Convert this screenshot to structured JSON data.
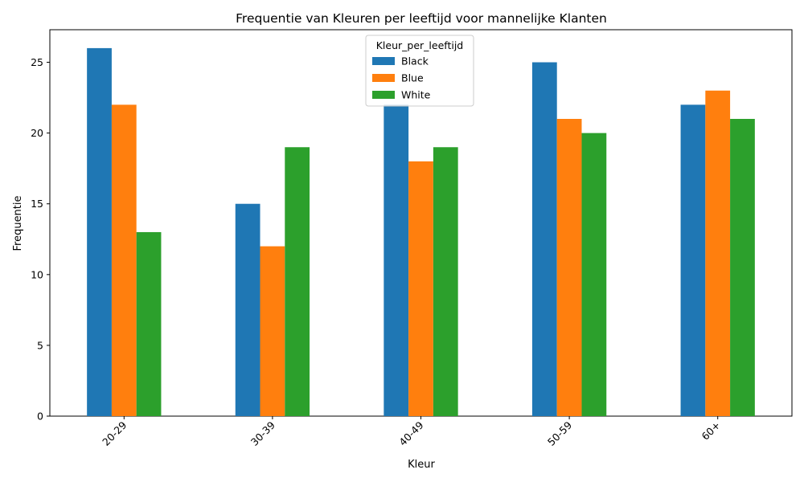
{
  "chart_data": {
    "type": "bar",
    "title": "Frequentie van Kleuren per leeftijd voor mannelijke Klanten",
    "xlabel": "Kleur",
    "ylabel": "Frequentie",
    "categories": [
      "20-29",
      "30-39",
      "40-49",
      "50-59",
      "60+"
    ],
    "series": [
      {
        "name": "Black",
        "color": "#1f77b4",
        "values": [
          26,
          15,
          22,
          25,
          22
        ]
      },
      {
        "name": "Blue",
        "color": "#ff7f0e",
        "values": [
          22,
          12,
          18,
          21,
          23
        ]
      },
      {
        "name": "White",
        "color": "#2ca02c",
        "values": [
          13,
          19,
          19,
          20,
          21
        ]
      }
    ],
    "ylim": [
      0,
      27.3
    ],
    "yticks": [
      0,
      5,
      10,
      15,
      20,
      25
    ],
    "x_tick_rotation_deg": 45,
    "grid": false,
    "legend": {
      "title": "Kleur_per_leeftijd",
      "placement": "upper-center"
    }
  }
}
